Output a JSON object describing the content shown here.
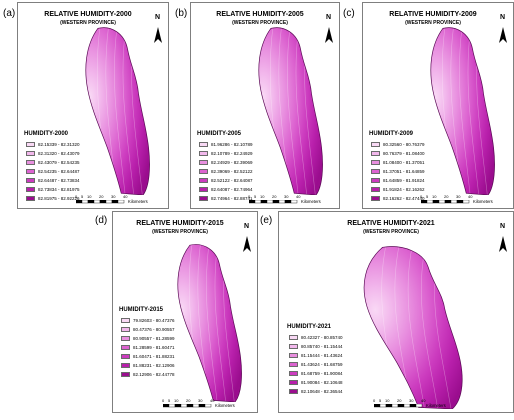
{
  "panels": [
    {
      "letter": "(a)",
      "title": "RELATIVE HUMIDITY-2000",
      "subtitle": "(WESTERN PROVINCE)",
      "legend_title": "HUMIDITY-2000",
      "classes": [
        "82.15339 - 82.31320",
        "82.31320 - 82.43079",
        "82.43079 - 82.54235",
        "82.54235 - 82.64487",
        "82.64487 - 82.73834",
        "82.73834 - 82.81975",
        "82.81975 - 82.92226"
      ],
      "scale_ticks": [
        "0",
        "5",
        "10",
        "20",
        "30",
        "40"
      ],
      "scale_units": "Kilometers",
      "north": "N"
    },
    {
      "letter": "(b)",
      "title": "RELATIVE HUMIDITY-2005",
      "subtitle": "(WESTERN PROVINCE)",
      "legend_title": "HUMIDITY-2005",
      "classes": [
        "81.96286 - 82.10789",
        "82.10789 - 82.24929",
        "82.24929 - 82.39069",
        "82.39069 - 82.52122",
        "82.52122 - 82.64087",
        "82.64087 - 82.74964",
        "82.74964 - 82.88741"
      ],
      "scale_ticks": [
        "0",
        "5",
        "10",
        "20",
        "30",
        "40"
      ],
      "scale_units": "Kilometers",
      "north": "N"
    },
    {
      "letter": "(c)",
      "title": "RELATIVE HUMIDITY-2009",
      "subtitle": "(WESTERN PROVINCE)",
      "legend_title": "HUMIDITY-2009",
      "classes": [
        "80.32560 - 80.76379",
        "80.76379 - 81.08400",
        "81.08400 - 81.37051",
        "81.37051 - 81.64859",
        "81.64859 - 81.91824",
        "81.91824 - 82.16262",
        "82.16262 - 82.47440"
      ],
      "scale_ticks": [
        "0",
        "5",
        "10",
        "20",
        "30",
        "40"
      ],
      "scale_units": "Kilometers",
      "north": "N"
    },
    {
      "letter": "(d)",
      "title": "RELATIVE HUMIDITY-2015",
      "subtitle": "(WESTERN PROVINCE)",
      "legend_title": "HUMIDITY-2015",
      "classes": [
        "79.82603 - 80.47376",
        "80.47376 - 80.90557",
        "80.90557 - 81.28599",
        "81.28599 - 81.60471",
        "81.60471 - 81.88231",
        "81.88231 - 82.12906",
        "82.12906 - 82.44778"
      ],
      "scale_ticks": [
        "0",
        "5",
        "10",
        "20",
        "30",
        "40"
      ],
      "scale_units": "Kilometers",
      "north": "N"
    },
    {
      "letter": "(e)",
      "title": "RELATIVE HUMIDITY-2021",
      "subtitle": "(WESTERN PROVINCE)",
      "legend_title": "HUMIDITY-2021",
      "classes": [
        "80.42327 - 80.85740",
        "80.85740 - 81.15444",
        "81.15444 - 81.43624",
        "81.43624 - 81.68759",
        "81.68759 - 81.90084",
        "81.90084 - 82.10648",
        "82.10648 - 82.36544"
      ],
      "scale_ticks": [
        "0",
        "5",
        "10",
        "20",
        "30",
        "40"
      ],
      "scale_units": "Kilometers",
      "north": "N"
    }
  ],
  "colors": {
    "ramp": [
      "#f9d9f5",
      "#f2b8ec",
      "#e88fdf",
      "#dc63d0",
      "#cc3cbf",
      "#b81fab",
      "#9a0d8e"
    ],
    "frame": "#7f7f7f"
  }
}
